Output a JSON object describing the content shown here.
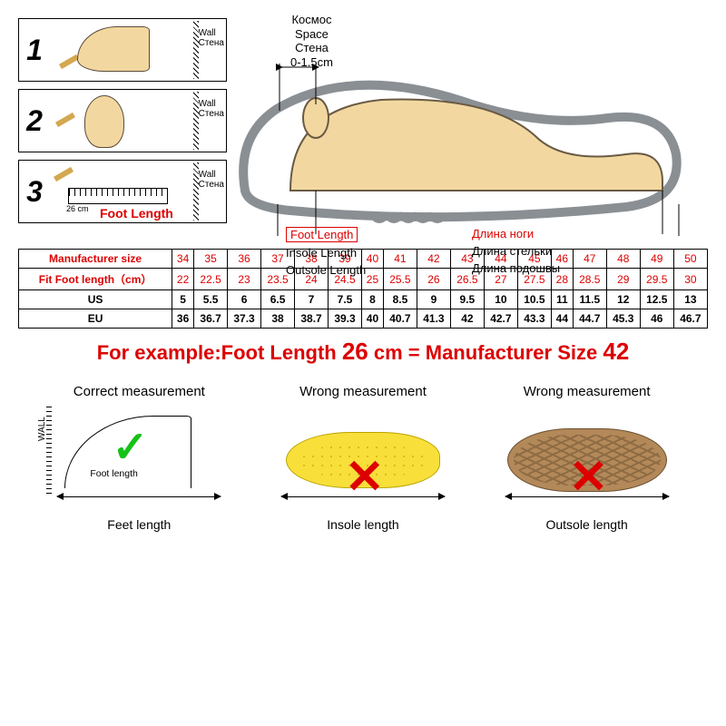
{
  "steps": {
    "nums": [
      "1",
      "2",
      "3"
    ],
    "wall_en": "Wall",
    "wall_ru": "Стена",
    "ruler_cm": "26 cm",
    "foot_length_label": "Foot Length"
  },
  "diagram": {
    "space_ru": "Космос",
    "space_en": "Space",
    "space_ru2": "Стена",
    "space_range": "0-1.5cm",
    "foot_length_en": "Foot Length",
    "foot_length_ru": "Длина ноги",
    "insole_en": "Insole Length",
    "insole_ru": "Длина стельки",
    "outsole_en": "Outsole Length",
    "outsole_ru": "Длина подошвы",
    "colors": {
      "foot": "#f2d8a0",
      "shoe_outline": "#8a8f94",
      "highlight": "#d00000"
    }
  },
  "table": {
    "headers": [
      "Manufacturer size",
      "Fit Foot length（cm）",
      "US",
      "EU"
    ],
    "sizes": [
      "34",
      "35",
      "36",
      "37",
      "38",
      "39",
      "40",
      "41",
      "42",
      "43",
      "44",
      "45",
      "46",
      "47",
      "48",
      "49",
      "50"
    ],
    "foot_cm": [
      "22",
      "22.5",
      "23",
      "23.5",
      "24",
      "24.5",
      "25",
      "25.5",
      "26",
      "26.5",
      "27",
      "27.5",
      "28",
      "28.5",
      "29",
      "29.5",
      "30"
    ],
    "us": [
      "5",
      "5.5",
      "6",
      "6.5",
      "7",
      "7.5",
      "8",
      "8.5",
      "9",
      "9.5",
      "10",
      "10.5",
      "11",
      "11.5",
      "12",
      "12.5",
      "13"
    ],
    "eu": [
      "36",
      "36.7",
      "37.3",
      "38",
      "38.7",
      "39.3",
      "40",
      "40.7",
      "41.3",
      "42",
      "42.7",
      "43.3",
      "44",
      "44.7",
      "45.3",
      "46",
      "46.7"
    ]
  },
  "example": {
    "prefix": "For example:Foot Length ",
    "length": "26",
    "unit": " cm = Manufacturer Size ",
    "size": "42"
  },
  "measure": {
    "correct": "Correct measurement",
    "wrong": "Wrong measurement",
    "feet_caption": "Feet length",
    "insole_caption": "Insole length",
    "outsole_caption": "Outsole length",
    "foot_label": "Foot length",
    "wall": "WALL"
  }
}
